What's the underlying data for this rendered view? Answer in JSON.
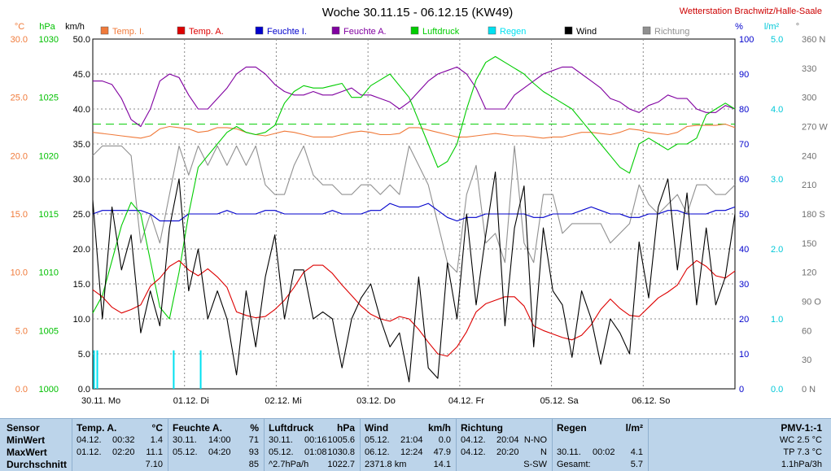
{
  "chart_data": {
    "type": "line",
    "title": "Woche 30.11.15 - 06.12.15 (KW49)",
    "station": "Wetterstation Brachwitz/Halle-Saale",
    "xlabels": [
      "30.11.  Mo",
      "01.12.  Di",
      "02.12.  Mi",
      "03.12.  Do",
      "04.12.  Fr",
      "05.12.  Sa",
      "06.12.  So"
    ],
    "legend": [
      {
        "name": "Temp. I.",
        "color": "#f07a3a"
      },
      {
        "name": "Temp. A.",
        "color": "#dd0000"
      },
      {
        "name": "Feuchte I.",
        "color": "#0000cc"
      },
      {
        "name": "Feuchte A.",
        "color": "#8000a0"
      },
      {
        "name": "Luftdruck",
        "color": "#00cc00"
      },
      {
        "name": "Regen",
        "color": "#00e0f0"
      },
      {
        "name": "Wind",
        "color": "#000000"
      },
      {
        "name": "Richtung",
        "color": "#909090"
      }
    ],
    "axes": {
      "temp": {
        "unit": "°C",
        "range": [
          0,
          30
        ],
        "ticks": [
          "0.0",
          "5.0",
          "10.0",
          "15.0",
          "20.0",
          "25.0",
          "30.0"
        ]
      },
      "pressure": {
        "unit": "hPa",
        "range": [
          1000,
          1030
        ],
        "ticks": [
          "1000",
          "1005",
          "1010",
          "1015",
          "1020",
          "1025",
          "1030"
        ]
      },
      "wind": {
        "unit": "km/h",
        "range": [
          0,
          50
        ],
        "ticks": [
          "0.0",
          "5.0",
          "10.0",
          "15.0",
          "20.0",
          "25.0",
          "30.0",
          "35.0",
          "40.0",
          "45.0",
          "50.0"
        ]
      },
      "humidity": {
        "unit": "%",
        "range": [
          0,
          100
        ],
        "ticks": [
          "0",
          "10",
          "20",
          "30",
          "40",
          "50",
          "60",
          "70",
          "80",
          "90",
          "100"
        ]
      },
      "rain": {
        "unit": "l/m²",
        "range": [
          0,
          5
        ],
        "ticks": [
          "0.0",
          "1.0",
          "2.0",
          "3.0",
          "4.0",
          "5.0"
        ]
      },
      "direction": {
        "unit": "°",
        "range": [
          0,
          360
        ],
        "ticks": [
          "0  N",
          "30",
          "60",
          "90  O",
          "120",
          "150",
          "180  S",
          "210",
          "240",
          "270  W",
          "300",
          "330",
          "360  N"
        ]
      }
    },
    "avg_pressure": 1022.7,
    "series": [
      {
        "name": "Temp. A.",
        "axis": "temp",
        "values": [
          8.5,
          7.9,
          7.0,
          6.5,
          6.8,
          7.2,
          8.8,
          9.5,
          10.5,
          11.0,
          10.2,
          9.7,
          10.3,
          9.6,
          8.7,
          6.6,
          6.3,
          6.1,
          6.2,
          6.8,
          7.6,
          8.7,
          10.0,
          10.6,
          10.6,
          9.9,
          8.9,
          8.0,
          7.1,
          6.4,
          6.0,
          5.8,
          6.2,
          6.0,
          5.1,
          4.0,
          3.0,
          2.8,
          3.6,
          4.9,
          6.6,
          7.3,
          7.6,
          7.9,
          7.9,
          7.1,
          5.4,
          5.0,
          4.7,
          4.4,
          4.2,
          4.6,
          5.5,
          6.8,
          7.7,
          6.9,
          6.3,
          6.2,
          7.0,
          7.8,
          8.3,
          8.9,
          10.3,
          11.0,
          10.5,
          9.7,
          9.5,
          10.1
        ]
      },
      {
        "name": "Temp. I.",
        "axis": "temp",
        "values": [
          22.0,
          21.9,
          21.8,
          21.7,
          21.6,
          21.5,
          21.7,
          22.3,
          22.5,
          22.4,
          22.3,
          22.0,
          22.1,
          22.4,
          22.4,
          22.3,
          22.0,
          21.8,
          21.7,
          21.9,
          22.1,
          22.0,
          21.8,
          21.6,
          21.6,
          21.6,
          21.8,
          22.0,
          22.1,
          22.0,
          21.8,
          21.8,
          21.9,
          22.4,
          22.4,
          22.2,
          22.0,
          21.8,
          21.6,
          21.6,
          21.7,
          21.8,
          21.9,
          21.8,
          21.7,
          21.7,
          21.6,
          21.5,
          21.6,
          21.6,
          21.8,
          22.0,
          22.0,
          21.9,
          21.8,
          22.0,
          22.3,
          22.2,
          22.0,
          21.9,
          21.8,
          22.0,
          22.5,
          22.6,
          22.6,
          22.6,
          22.7,
          22.4
        ]
      },
      {
        "name": "Feuchte A.",
        "axis": "humidity",
        "values": [
          88,
          88,
          87,
          83,
          77,
          75,
          80,
          88,
          90,
          89,
          84,
          80,
          80,
          83,
          86,
          90,
          92,
          92,
          90,
          87,
          85,
          84,
          84,
          85,
          84,
          84,
          85,
          86,
          84,
          84,
          83,
          82,
          80,
          82,
          85,
          88,
          90,
          91,
          92,
          90,
          86,
          80,
          80,
          80,
          84,
          86,
          88,
          90,
          91,
          92,
          92,
          90,
          88,
          86,
          83,
          82,
          80,
          79,
          81,
          82,
          84,
          83,
          83,
          80,
          79,
          79,
          81,
          80
        ]
      },
      {
        "name": "Feuchte I.",
        "axis": "humidity",
        "values": [
          50,
          51,
          51,
          51,
          51,
          51,
          50,
          48,
          48,
          48,
          50,
          50,
          50,
          50,
          51,
          50,
          50,
          50,
          51,
          51,
          50,
          50,
          50,
          50,
          50,
          51,
          50,
          50,
          50,
          51,
          51,
          53,
          52,
          52,
          52,
          53,
          51,
          49,
          48,
          49,
          49,
          50,
          50,
          50,
          50,
          50,
          49,
          49,
          50,
          50,
          50,
          51,
          52,
          51,
          50,
          50,
          49,
          49,
          50,
          50,
          51,
          51,
          50,
          50,
          50,
          51,
          51,
          52
        ]
      },
      {
        "name": "Luftdruck",
        "axis": "pressure",
        "values": [
          1006.5,
          1008.0,
          1011.0,
          1014.0,
          1016.0,
          1015.0,
          1011.0,
          1007.0,
          1006.0,
          1010.0,
          1015.0,
          1019.0,
          1020.0,
          1021.0,
          1022.0,
          1022.5,
          1022.0,
          1021.8,
          1022.0,
          1022.6,
          1024.5,
          1025.5,
          1026.0,
          1025.8,
          1025.8,
          1026.0,
          1026.2,
          1025.0,
          1025.0,
          1026.0,
          1026.5,
          1027.0,
          1026.0,
          1025.0,
          1023.0,
          1021.0,
          1019.0,
          1019.5,
          1021.0,
          1024.0,
          1026.5,
          1028.0,
          1028.5,
          1028.0,
          1027.5,
          1027.0,
          1026.2,
          1025.5,
          1025.0,
          1024.5,
          1024.0,
          1023.0,
          1022.0,
          1021.0,
          1020.0,
          1019.0,
          1018.5,
          1021.0,
          1021.5,
          1021.0,
          1020.5,
          1021.0,
          1021.0,
          1021.5,
          1023.5,
          1024.0,
          1024.5,
          1024.0
        ]
      },
      {
        "name": "Wind",
        "axis": "wind",
        "values": [
          27.0,
          10.0,
          26.0,
          17.0,
          22.0,
          8.0,
          14.0,
          9.0,
          23.0,
          30.0,
          14.0,
          20.0,
          10.0,
          14.0,
          10.0,
          2.0,
          14.0,
          6.0,
          16.0,
          22.0,
          10.0,
          17.0,
          17.0,
          10.0,
          11.0,
          10.0,
          3.0,
          10.0,
          13.0,
          15.0,
          10.0,
          6.0,
          8.0,
          1.0,
          16.0,
          3.0,
          1.5,
          18.0,
          10.0,
          25.0,
          12.0,
          22.0,
          31.0,
          9.0,
          23.0,
          29.0,
          6.0,
          23.0,
          14.0,
          12.0,
          4.5,
          14.0,
          10.0,
          3.5,
          10.0,
          8.0,
          5.0,
          21.0,
          13.0,
          26.0,
          30.0,
          17.0,
          28.0,
          12.0,
          23.0,
          12.0,
          16.0,
          25.0
        ]
      },
      {
        "name": "Richtung",
        "axis": "direction",
        "values": [
          240,
          250,
          250,
          250,
          240,
          150,
          180,
          150,
          200,
          250,
          220,
          250,
          230,
          250,
          230,
          250,
          230,
          250,
          210,
          200,
          200,
          230,
          250,
          220,
          210,
          210,
          200,
          200,
          210,
          210,
          200,
          210,
          200,
          250,
          230,
          210,
          170,
          130,
          120,
          200,
          230,
          150,
          160,
          130,
          250,
          150,
          130,
          200,
          200,
          160,
          170,
          170,
          170,
          170,
          150,
          160,
          170,
          210,
          190,
          180,
          190,
          200,
          180,
          210,
          210,
          200,
          200,
          210
        ]
      },
      {
        "name": "Regen",
        "axis": "rain",
        "values": [
          0.55,
          0.55,
          0.55,
          0.55
        ],
        "x": [
          0.002,
          0.007,
          0.126,
          0.168
        ]
      }
    ],
    "xlim": [
      0,
      7
    ]
  },
  "stats": {
    "sensor": {
      "title": "Sensor",
      "rows": [
        "MinWert",
        "MaxWert",
        "Durchschnitt"
      ]
    },
    "temp": {
      "title": "Temp. A.",
      "unit": "°C",
      "rows": [
        {
          "d": "04.12.",
          "t": "00:32",
          "v": "1.4"
        },
        {
          "d": "01.12.",
          "t": "02:20",
          "v": "11.1"
        },
        {
          "d": "",
          "t": "",
          "v": "7.10"
        }
      ]
    },
    "hum": {
      "title": "Feuchte A.",
      "unit": "%",
      "rows": [
        {
          "d": "30.11.",
          "t": "14:00",
          "v": "71"
        },
        {
          "d": "05.12.",
          "t": "04:20",
          "v": "93"
        },
        {
          "d": "",
          "t": "",
          "v": "85"
        }
      ]
    },
    "press": {
      "title": "Luftdruck",
      "unit": "hPa",
      "rows": [
        {
          "d": "30.11.",
          "t": "00:16",
          "v": "1005.6"
        },
        {
          "d": "05.12.",
          "t": "01:08",
          "v": "1030.8"
        },
        {
          "d": "^2.7hPa/h",
          "t": "",
          "v": "1022.7"
        }
      ]
    },
    "wind": {
      "title": "Wind",
      "unit": "km/h",
      "rows": [
        {
          "d": "05.12.",
          "t": "21:04",
          "v": "0.0"
        },
        {
          "d": "06.12.",
          "t": "12:24",
          "v": "47.9"
        },
        {
          "d": "2371.8 km",
          "t": "",
          "v": "14.1"
        }
      ]
    },
    "dir": {
      "title": "Richtung",
      "rows": [
        {
          "d": "04.12.",
          "t": "20:04",
          "v": "N-NO"
        },
        {
          "d": "04.12.",
          "t": "20:20",
          "v": "N"
        },
        {
          "d": "",
          "t": "",
          "v": "S-SW"
        }
      ]
    },
    "rain": {
      "title": "Regen",
      "unit": "l/m²",
      "rows": [
        {
          "d": "",
          "t": "",
          "v": ""
        },
        {
          "d": "30.11.",
          "t": "00:02",
          "v": "4.1"
        },
        {
          "d": "Gesamt:",
          "t": "",
          "v": "5.7"
        }
      ]
    },
    "pmv": {
      "title": "PMV-1:-1",
      "rows": [
        "WC 2.5 °C",
        "TP 7.3 °C",
        "1.1hPa/3h"
      ]
    }
  }
}
